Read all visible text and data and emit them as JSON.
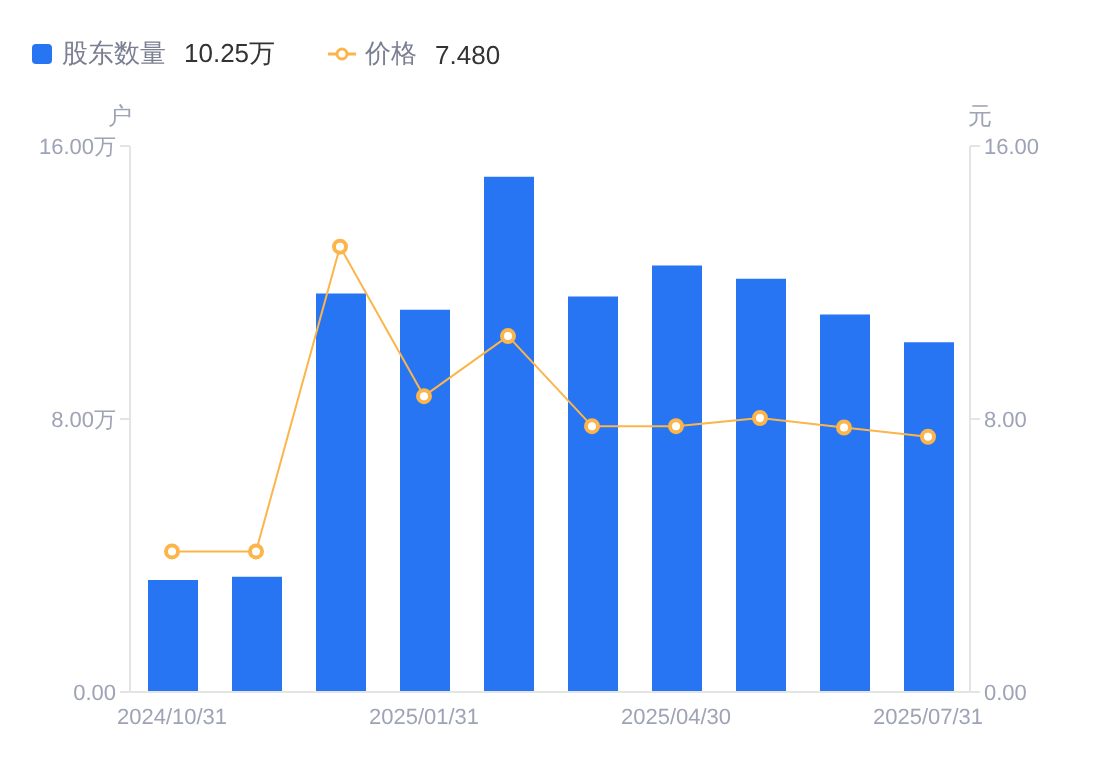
{
  "chart_data": {
    "type": "bar",
    "categories": [
      "2024/10/31",
      null,
      null,
      "2025/01/31",
      null,
      null,
      "2025/04/30",
      null,
      null,
      "2025/07/31"
    ],
    "series": [
      {
        "name": "股东数量 10.25万",
        "color": "#2775f3",
        "values": [
          3.28,
          3.38,
          11.68,
          11.2,
          15.1,
          11.59,
          12.5,
          12.11,
          11.06,
          10.25
        ]
      },
      {
        "name": "价格 7.480",
        "type": "line",
        "axis": "y2",
        "color": "#fbb54a",
        "marker": "circle",
        "values": [
          4.12,
          4.12,
          13.05,
          8.67,
          10.43,
          7.79,
          7.79,
          8.03,
          7.75,
          7.48
        ]
      }
    ],
    "ylabel": "户",
    "y2label": "元",
    "ylim": [
      0,
      16
    ],
    "yticks": [
      {
        "value": 0,
        "label": "0.00"
      },
      {
        "value": 8,
        "label": "8.00万"
      },
      {
        "value": 16,
        "label": "16.00万"
      }
    ],
    "y2lim": [
      0,
      16
    ],
    "y2ticks": [
      {
        "value": 0,
        "label": "0.00"
      },
      {
        "value": 8,
        "label": "8.00"
      },
      {
        "value": 16,
        "label": "16.00"
      }
    ],
    "legend": "top left",
    "grid": false
  }
}
